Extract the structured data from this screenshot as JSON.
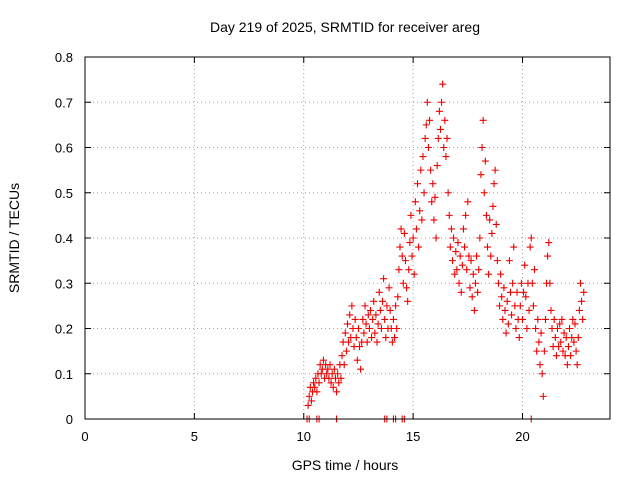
{
  "chart_data": {
    "type": "scatter",
    "title": "Day 219 of 2025, SRMTID for receiver areg",
    "xlabel": "GPS time / hours",
    "ylabel": "SRMTID / TECUs",
    "xlim": [
      0,
      24
    ],
    "ylim": [
      0,
      0.8
    ],
    "xticks": [
      0,
      5,
      10,
      15,
      20
    ],
    "xtick_labels": [
      "0",
      "5",
      "10",
      "15",
      "20"
    ],
    "yticks": [
      0,
      0.1,
      0.2,
      0.3,
      0.4,
      0.5,
      0.6,
      0.7,
      0.8
    ],
    "ytick_labels": [
      "0",
      "0.1",
      "0.2",
      "0.3",
      "0.4",
      "0.5",
      "0.6",
      "0.7",
      "0.8"
    ],
    "grid": true,
    "marker": "+",
    "color": "#ee0000",
    "series": [
      {
        "name": "SRMTID",
        "points": [
          [
            10.15,
            0.0
          ],
          [
            10.25,
            0.0
          ],
          [
            10.6,
            0.0
          ],
          [
            10.7,
            0.0
          ],
          [
            11.5,
            0.0
          ],
          [
            13.7,
            0.0
          ],
          [
            13.8,
            0.0
          ],
          [
            14.1,
            0.0
          ],
          [
            14.2,
            0.0
          ],
          [
            14.5,
            0.0
          ],
          [
            14.6,
            0.0
          ],
          [
            20.4,
            0.0
          ],
          [
            10.2,
            0.03
          ],
          [
            10.25,
            0.05
          ],
          [
            10.3,
            0.07
          ],
          [
            10.35,
            0.04
          ],
          [
            10.4,
            0.06
          ],
          [
            10.45,
            0.08
          ],
          [
            10.5,
            0.07
          ],
          [
            10.55,
            0.09
          ],
          [
            10.6,
            0.06
          ],
          [
            10.65,
            0.1
          ],
          [
            10.7,
            0.08
          ],
          [
            10.75,
            0.12
          ],
          [
            10.8,
            0.1
          ],
          [
            10.85,
            0.11
          ],
          [
            10.9,
            0.13
          ],
          [
            10.95,
            0.09
          ],
          [
            11.0,
            0.12
          ],
          [
            11.05,
            0.1
          ],
          [
            11.1,
            0.11
          ],
          [
            11.15,
            0.09
          ],
          [
            11.2,
            0.12
          ],
          [
            11.25,
            0.08
          ],
          [
            11.3,
            0.1
          ],
          [
            11.35,
            0.07
          ],
          [
            11.4,
            0.11
          ],
          [
            11.45,
            0.09
          ],
          [
            11.5,
            0.06
          ],
          [
            11.55,
            0.1
          ],
          [
            11.6,
            0.08
          ],
          [
            11.65,
            0.12
          ],
          [
            11.7,
            0.09
          ],
          [
            11.75,
            0.14
          ],
          [
            11.8,
            0.17
          ],
          [
            11.85,
            0.12
          ],
          [
            11.9,
            0.19
          ],
          [
            11.95,
            0.15
          ],
          [
            12.0,
            0.21
          ],
          [
            12.05,
            0.17
          ],
          [
            12.1,
            0.23
          ],
          [
            12.15,
            0.18
          ],
          [
            12.2,
            0.25
          ],
          [
            12.25,
            0.2
          ],
          [
            12.3,
            0.16
          ],
          [
            12.35,
            0.22
          ],
          [
            12.4,
            0.18
          ],
          [
            12.45,
            0.13
          ],
          [
            12.5,
            0.2
          ],
          [
            12.55,
            0.16
          ],
          [
            12.6,
            0.11
          ],
          [
            12.65,
            0.17
          ],
          [
            12.7,
            0.22
          ],
          [
            12.75,
            0.19
          ],
          [
            12.8,
            0.25
          ],
          [
            12.85,
            0.21
          ],
          [
            12.9,
            0.17
          ],
          [
            12.95,
            0.23
          ],
          [
            13.0,
            0.2
          ],
          [
            13.05,
            0.24
          ],
          [
            13.1,
            0.18
          ],
          [
            13.15,
            0.22
          ],
          [
            13.2,
            0.26
          ],
          [
            13.25,
            0.19
          ],
          [
            13.3,
            0.23
          ],
          [
            13.35,
            0.17
          ],
          [
            13.4,
            0.21
          ],
          [
            13.45,
            0.28
          ],
          [
            13.5,
            0.24
          ],
          [
            13.55,
            0.2
          ],
          [
            13.6,
            0.26
          ],
          [
            13.65,
            0.31
          ],
          [
            13.7,
            0.22
          ],
          [
            13.75,
            0.18
          ],
          [
            13.8,
            0.25
          ],
          [
            13.85,
            0.2
          ],
          [
            13.9,
            0.29
          ],
          [
            13.95,
            0.24
          ],
          [
            14.0,
            0.2
          ],
          [
            14.05,
            0.17
          ],
          [
            14.1,
            0.22
          ],
          [
            14.15,
            0.18
          ],
          [
            14.2,
            0.25
          ],
          [
            14.25,
            0.2
          ],
          [
            14.3,
            0.27
          ],
          [
            14.35,
            0.33
          ],
          [
            14.4,
            0.38
          ],
          [
            14.45,
            0.42
          ],
          [
            14.5,
            0.36
          ],
          [
            14.55,
            0.3
          ],
          [
            14.6,
            0.41
          ],
          [
            14.65,
            0.35
          ],
          [
            14.7,
            0.29
          ],
          [
            14.75,
            0.26
          ],
          [
            14.8,
            0.33
          ],
          [
            14.85,
            0.39
          ],
          [
            14.9,
            0.45
          ],
          [
            14.95,
            0.36
          ],
          [
            15.0,
            0.4
          ],
          [
            15.05,
            0.32
          ],
          [
            15.1,
            0.48
          ],
          [
            15.15,
            0.42
          ],
          [
            15.2,
            0.52
          ],
          [
            15.25,
            0.38
          ],
          [
            15.3,
            0.46
          ],
          [
            15.35,
            0.55
          ],
          [
            15.4,
            0.44
          ],
          [
            15.45,
            0.58
          ],
          [
            15.5,
            0.5
          ],
          [
            15.55,
            0.62
          ],
          [
            15.6,
            0.65
          ],
          [
            15.65,
            0.7
          ],
          [
            15.7,
            0.6
          ],
          [
            15.75,
            0.66
          ],
          [
            15.8,
            0.55
          ],
          [
            15.85,
            0.48
          ],
          [
            15.9,
            0.52
          ],
          [
            15.95,
            0.44
          ],
          [
            16.0,
            0.49
          ],
          [
            16.05,
            0.4
          ],
          [
            16.1,
            0.56
          ],
          [
            16.15,
            0.62
          ],
          [
            16.2,
            0.68
          ],
          [
            16.25,
            0.64
          ],
          [
            16.3,
            0.7
          ],
          [
            16.35,
            0.74
          ],
          [
            16.4,
            0.6
          ],
          [
            16.45,
            0.66
          ],
          [
            16.5,
            0.58
          ],
          [
            16.55,
            0.62
          ],
          [
            16.6,
            0.5
          ],
          [
            16.65,
            0.45
          ],
          [
            16.7,
            0.38
          ],
          [
            16.75,
            0.42
          ],
          [
            16.8,
            0.35
          ],
          [
            16.85,
            0.4
          ],
          [
            16.9,
            0.32
          ],
          [
            16.95,
            0.37
          ],
          [
            17.0,
            0.33
          ],
          [
            17.05,
            0.39
          ],
          [
            17.1,
            0.3
          ],
          [
            17.15,
            0.36
          ],
          [
            17.2,
            0.28
          ],
          [
            17.25,
            0.34
          ],
          [
            17.3,
            0.42
          ],
          [
            17.35,
            0.38
          ],
          [
            17.4,
            0.45
          ],
          [
            17.45,
            0.33
          ],
          [
            17.5,
            0.48
          ],
          [
            17.55,
            0.36
          ],
          [
            17.6,
            0.29
          ],
          [
            17.65,
            0.35
          ],
          [
            17.7,
            0.27
          ],
          [
            17.75,
            0.32
          ],
          [
            17.8,
            0.24
          ],
          [
            17.85,
            0.3
          ],
          [
            17.9,
            0.36
          ],
          [
            17.95,
            0.28
          ],
          [
            18.0,
            0.33
          ],
          [
            18.05,
            0.4
          ],
          [
            18.1,
            0.54
          ],
          [
            18.15,
            0.6
          ],
          [
            18.2,
            0.66
          ],
          [
            18.25,
            0.5
          ],
          [
            18.3,
            0.57
          ],
          [
            18.35,
            0.45
          ],
          [
            18.4,
            0.38
          ],
          [
            18.45,
            0.32
          ],
          [
            18.5,
            0.44
          ],
          [
            18.55,
            0.36
          ],
          [
            18.6,
            0.41
          ],
          [
            18.65,
            0.47
          ],
          [
            18.7,
            0.52
          ],
          [
            18.75,
            0.55
          ],
          [
            18.8,
            0.43
          ],
          [
            18.85,
            0.35
          ],
          [
            18.9,
            0.3
          ],
          [
            18.95,
            0.25
          ],
          [
            19.0,
            0.32
          ],
          [
            19.05,
            0.27
          ],
          [
            19.1,
            0.22
          ],
          [
            19.15,
            0.29
          ],
          [
            19.2,
            0.24
          ],
          [
            19.25,
            0.19
          ],
          [
            19.3,
            0.26
          ],
          [
            19.35,
            0.21
          ],
          [
            19.4,
            0.35
          ],
          [
            19.45,
            0.28
          ],
          [
            19.5,
            0.23
          ],
          [
            19.55,
            0.3
          ],
          [
            19.6,
            0.38
          ],
          [
            19.65,
            0.25
          ],
          [
            19.7,
            0.2
          ],
          [
            19.75,
            0.28
          ],
          [
            19.8,
            0.22
          ],
          [
            19.85,
            0.18
          ],
          [
            19.9,
            0.25
          ],
          [
            19.95,
            0.3
          ],
          [
            20.0,
            0.22
          ],
          [
            20.05,
            0.28
          ],
          [
            20.1,
            0.34
          ],
          [
            20.15,
            0.27
          ],
          [
            20.2,
            0.2
          ],
          [
            20.25,
            0.3
          ],
          [
            20.3,
            0.24
          ],
          [
            20.35,
            0.38
          ],
          [
            20.4,
            0.4
          ],
          [
            20.45,
            0.3
          ],
          [
            20.5,
            0.25
          ],
          [
            20.55,
            0.33
          ],
          [
            20.6,
            0.2
          ],
          [
            20.65,
            0.15
          ],
          [
            20.7,
            0.22
          ],
          [
            20.75,
            0.17
          ],
          [
            20.8,
            0.12
          ],
          [
            20.85,
            0.19
          ],
          [
            20.9,
            0.1
          ],
          [
            20.95,
            0.05
          ],
          [
            21.0,
            0.15
          ],
          [
            21.05,
            0.22
          ],
          [
            21.1,
            0.3
          ],
          [
            21.15,
            0.36
          ],
          [
            21.2,
            0.39
          ],
          [
            21.25,
            0.3
          ],
          [
            21.3,
            0.24
          ],
          [
            21.35,
            0.2
          ],
          [
            21.4,
            0.16
          ],
          [
            21.45,
            0.22
          ],
          [
            21.5,
            0.18
          ],
          [
            21.55,
            0.14
          ],
          [
            21.6,
            0.2
          ],
          [
            21.65,
            0.16
          ],
          [
            21.7,
            0.21
          ],
          [
            21.75,
            0.17
          ],
          [
            21.8,
            0.22
          ],
          [
            21.85,
            0.15
          ],
          [
            21.9,
            0.19
          ],
          [
            21.95,
            0.14
          ],
          [
            22.0,
            0.18
          ],
          [
            22.05,
            0.12
          ],
          [
            22.1,
            0.16
          ],
          [
            22.15,
            0.2
          ],
          [
            22.2,
            0.14
          ],
          [
            22.25,
            0.18
          ],
          [
            22.3,
            0.22
          ],
          [
            22.35,
            0.17
          ],
          [
            22.4,
            0.21
          ],
          [
            22.45,
            0.15
          ],
          [
            22.5,
            0.12
          ],
          [
            22.55,
            0.18
          ],
          [
            22.6,
            0.24
          ],
          [
            22.65,
            0.3
          ],
          [
            22.7,
            0.26
          ],
          [
            22.75,
            0.22
          ],
          [
            22.8,
            0.28
          ]
        ]
      }
    ]
  }
}
